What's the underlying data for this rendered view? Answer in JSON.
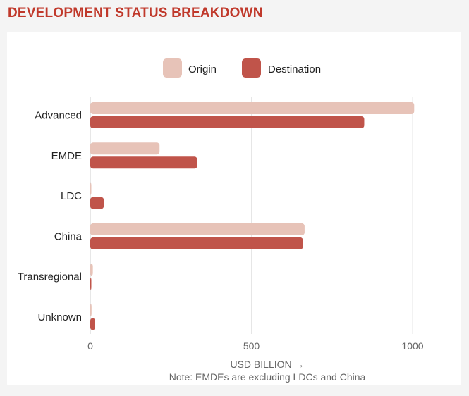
{
  "title": "DEVELOPMENT STATUS BREAKDOWN",
  "chart_data": {
    "type": "bar",
    "orientation": "horizontal",
    "categories": [
      "Advanced",
      "EMDE",
      "LDC",
      "China",
      "Transregional",
      "Unknown"
    ],
    "series": [
      {
        "name": "Origin",
        "color": "#e7c3b8",
        "values": [
          1005,
          215,
          2,
          665,
          8,
          4
        ]
      },
      {
        "name": "Destination",
        "color": "#c0544a",
        "values": [
          850,
          332,
          42,
          660,
          2,
          15
        ]
      }
    ],
    "xlabel": "USD BILLION →",
    "xlim": [
      0,
      1000
    ],
    "xticks": [
      0,
      500,
      1000
    ],
    "grid": true,
    "legend_position": "top",
    "note": "Note: EMDEs are excluding LDCs and China"
  }
}
